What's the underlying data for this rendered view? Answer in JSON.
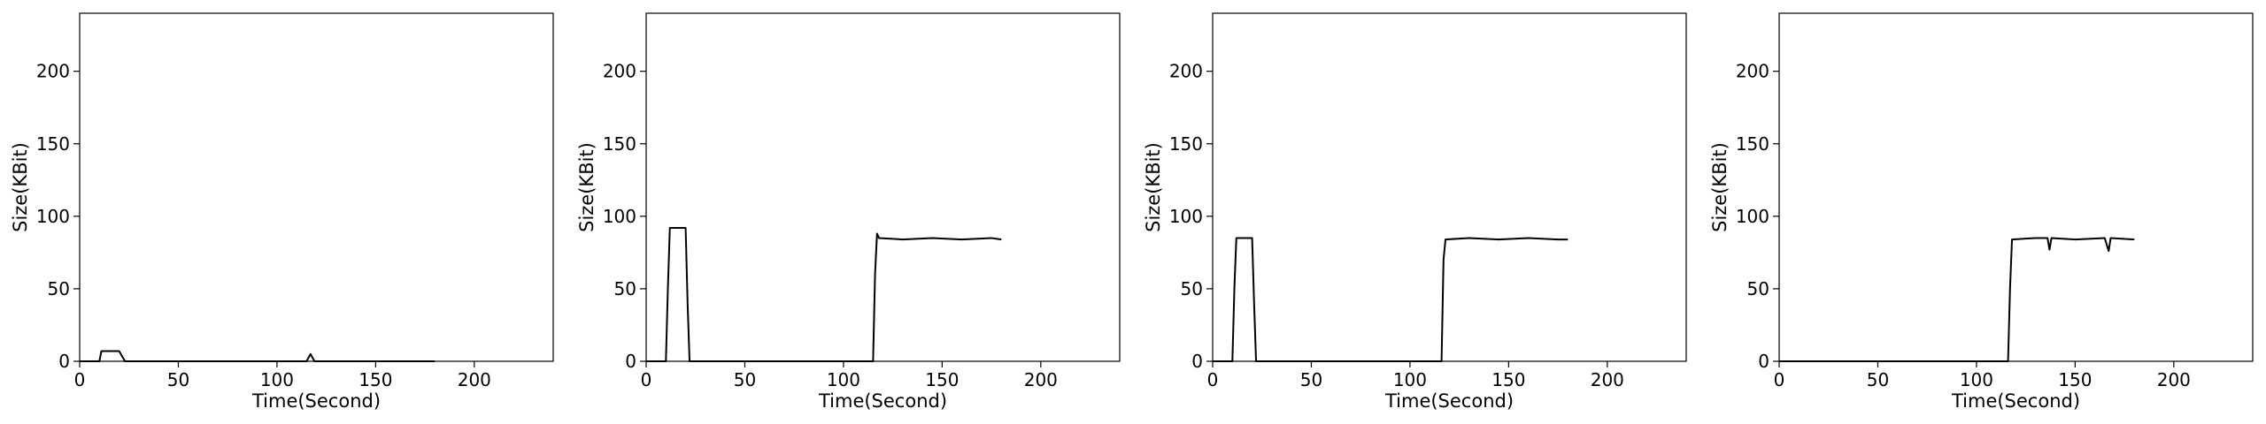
{
  "chart_data": [
    {
      "type": "line",
      "title": "",
      "xlabel": "Time(Second)",
      "ylabel": "Size(KBit)",
      "xlim": [
        0,
        240
      ],
      "ylim": [
        0,
        240
      ],
      "xticks": [
        0,
        50,
        100,
        150,
        200
      ],
      "yticks": [
        0,
        50,
        100,
        150,
        200
      ],
      "grid": false,
      "series": [
        {
          "color": "#000000",
          "points": [
            [
              0,
              0
            ],
            [
              10,
              0
            ],
            [
              11,
              7
            ],
            [
              20,
              7
            ],
            [
              23,
              0
            ],
            [
              115,
              0
            ],
            [
              117,
              5
            ],
            [
              119,
              0
            ],
            [
              180,
              0
            ]
          ]
        }
      ]
    },
    {
      "type": "line",
      "title": "",
      "xlabel": "Time(Second)",
      "ylabel": "Size(KBit)",
      "xlim": [
        0,
        240
      ],
      "ylim": [
        0,
        240
      ],
      "xticks": [
        0,
        50,
        100,
        150,
        200
      ],
      "yticks": [
        0,
        50,
        100,
        150,
        200
      ],
      "grid": false,
      "series": [
        {
          "color": "#000000",
          "points": [
            [
              0,
              0
            ],
            [
              10,
              0
            ],
            [
              11,
              50
            ],
            [
              12,
              92
            ],
            [
              20,
              92
            ],
            [
              21,
              40
            ],
            [
              22,
              0
            ],
            [
              115,
              0
            ],
            [
              116,
              60
            ],
            [
              117,
              88
            ],
            [
              118,
              85
            ],
            [
              130,
              84
            ],
            [
              145,
              85
            ],
            [
              160,
              84
            ],
            [
              175,
              85
            ],
            [
              180,
              84
            ]
          ]
        }
      ]
    },
    {
      "type": "line",
      "title": "",
      "xlabel": "Time(Second)",
      "ylabel": "Size(KBit)",
      "xlim": [
        0,
        240
      ],
      "ylim": [
        0,
        240
      ],
      "xticks": [
        0,
        50,
        100,
        150,
        200
      ],
      "yticks": [
        0,
        50,
        100,
        150,
        200
      ],
      "grid": false,
      "series": [
        {
          "color": "#000000",
          "points": [
            [
              0,
              0
            ],
            [
              10,
              0
            ],
            [
              11,
              50
            ],
            [
              12,
              85
            ],
            [
              20,
              85
            ],
            [
              21,
              40
            ],
            [
              22,
              0
            ],
            [
              116,
              0
            ],
            [
              117,
              70
            ],
            [
              118,
              84
            ],
            [
              130,
              85
            ],
            [
              145,
              84
            ],
            [
              160,
              85
            ],
            [
              175,
              84
            ],
            [
              180,
              84
            ]
          ]
        }
      ]
    },
    {
      "type": "line",
      "title": "",
      "xlabel": "Time(Second)",
      "ylabel": "Size(KBit)",
      "xlim": [
        0,
        240
      ],
      "ylim": [
        0,
        240
      ],
      "xticks": [
        0,
        50,
        100,
        150,
        200
      ],
      "yticks": [
        0,
        50,
        100,
        150,
        200
      ],
      "grid": false,
      "series": [
        {
          "color": "#000000",
          "points": [
            [
              0,
              0
            ],
            [
              116,
              0
            ],
            [
              117,
              50
            ],
            [
              118,
              84
            ],
            [
              130,
              85
            ],
            [
              136,
              85
            ],
            [
              137,
              77
            ],
            [
              138,
              85
            ],
            [
              150,
              84
            ],
            [
              165,
              85
            ],
            [
              167,
              76
            ],
            [
              168,
              85
            ],
            [
              180,
              84
            ]
          ]
        }
      ]
    }
  ]
}
